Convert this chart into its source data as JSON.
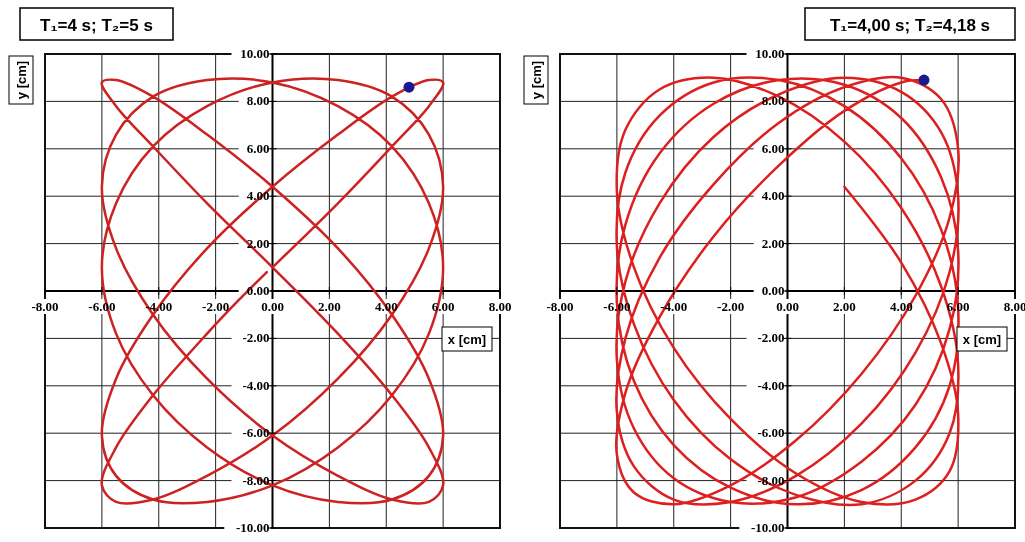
{
  "chart_data": [
    {
      "type": "line",
      "title": "T₁=4 s; T₂=5 s",
      "xlabel": "x [cm]",
      "ylabel": "y [cm]",
      "xlim": [
        -8,
        8
      ],
      "ylim": [
        -10,
        10
      ],
      "xticks": [
        {
          "value": -8,
          "label": "-8.00"
        },
        {
          "value": -6,
          "label": "-6.00"
        },
        {
          "value": -4,
          "label": "-4.00"
        },
        {
          "value": -2,
          "label": "-2.00"
        },
        {
          "value": 0,
          "label": "0.00"
        },
        {
          "value": 2,
          "label": "2.00"
        },
        {
          "value": 4,
          "label": "4.00"
        },
        {
          "value": 6,
          "label": "6.00"
        },
        {
          "value": 8,
          "label": "8.00"
        }
      ],
      "yticks": [
        {
          "value": -10,
          "label": "-10.00"
        },
        {
          "value": -8,
          "label": "-8.00"
        },
        {
          "value": -6,
          "label": "-6.00"
        },
        {
          "value": -4,
          "label": "-4.00"
        },
        {
          "value": -2,
          "label": "-2.00"
        },
        {
          "value": 0,
          "label": "0.00"
        },
        {
          "value": 2,
          "label": "2.00"
        },
        {
          "value": 4,
          "label": "4.00"
        },
        {
          "value": 6,
          "label": "6.00"
        },
        {
          "value": 8,
          "label": "8.00"
        },
        {
          "value": 10,
          "label": "10.00"
        }
      ],
      "grid": true,
      "series": [
        {
          "type": "line",
          "color": "#cc2222",
          "x": [
            0,
            2.3,
            4.2,
            5.5,
            6,
            5.5,
            4.2,
            2.3,
            0,
            -2.3,
            -4.2,
            -5.5,
            -6,
            -5.5,
            -4.2,
            -2.3,
            0,
            2.3,
            4.2,
            5.5,
            6,
            5.5,
            4.2,
            2.3,
            0,
            -2.3,
            -4.2,
            -5.5,
            -6,
            -5.5,
            -4.2,
            -2.3,
            0,
            2.3,
            4.2,
            5.5,
            6,
            5.5,
            4.2,
            2.3,
            0,
            -2.3,
            -4.2,
            -5.5,
            -6,
            -5.5,
            -4.2,
            -2.3,
            0,
            2.3,
            4.2,
            5.5,
            6,
            5.5,
            4.2,
            2.3,
            0,
            -2.3,
            -4.2,
            -5.5,
            -6,
            -5.5,
            -4.2,
            -2.3,
            0,
            2.3,
            4.2,
            5.5,
            6,
            5.5,
            4.2,
            2.3,
            0,
            -2.3,
            -4.2,
            -5.5,
            -6,
            -5.5,
            -4.2,
            -2.3,
            -1.2,
            -0.2
          ],
          "values": [
            1.0,
            3.7,
            6.1,
            7.8,
            8.8,
            8.9,
            8.2,
            6.6,
            4.4,
            1.8,
            -1.0,
            -3.7,
            -6.1,
            -7.8,
            -8.8,
            -8.9,
            -8.2,
            -6.6,
            -4.4,
            -1.8,
            1.0,
            3.7,
            6.1,
            7.8,
            8.8,
            8.9,
            8.2,
            6.6,
            4.4,
            1.8,
            -1.0,
            -3.7,
            -6.1,
            -7.8,
            -8.8,
            -8.9,
            -8.2,
            -6.6,
            -4.4,
            -1.8,
            1.0,
            3.7,
            6.1,
            7.8,
            8.8,
            8.9,
            8.2,
            6.6,
            4.4,
            1.8,
            -1.0,
            -3.7,
            -6.1,
            -7.8,
            -8.8,
            -8.9,
            -8.2,
            -6.6,
            -4.4,
            -1.8,
            1.0,
            3.7,
            6.1,
            7.8,
            8.8,
            8.9,
            8.2,
            6.6,
            4.4,
            1.8,
            -1.0,
            -3.7,
            -6.1,
            -7.8,
            -8.8,
            -8.9,
            -8.2,
            -6.6,
            -4.4,
            -1.8,
            -0.4,
            0.8
          ]
        },
        {
          "type": "scatter",
          "color": "#1a1a90",
          "x": [
            4.8
          ],
          "values": [
            8.6
          ]
        }
      ]
    },
    {
      "type": "line",
      "title": "T₁=4,00 s; T₂=4,18 s",
      "xlabel": "x [cm]",
      "ylabel": "y [cm]",
      "xlim": [
        -8,
        8
      ],
      "ylim": [
        -10,
        10
      ],
      "xticks": [
        {
          "value": -8,
          "label": "-8.00"
        },
        {
          "value": -6,
          "label": "-6.00"
        },
        {
          "value": -4,
          "label": "-4.00"
        },
        {
          "value": -2,
          "label": "-2.00"
        },
        {
          "value": 0,
          "label": "0.00"
        },
        {
          "value": 2,
          "label": "2.00"
        },
        {
          "value": 4,
          "label": "4.00"
        },
        {
          "value": 6,
          "label": "6.00"
        },
        {
          "value": 8,
          "label": "8.00"
        }
      ],
      "yticks": [
        {
          "value": -10,
          "label": "-10.00"
        },
        {
          "value": -8,
          "label": "-8.00"
        },
        {
          "value": -6,
          "label": "-6.00"
        },
        {
          "value": -4,
          "label": "-4.00"
        },
        {
          "value": -2,
          "label": "-2.00"
        },
        {
          "value": 0,
          "label": "0.00"
        },
        {
          "value": 2,
          "label": "2.00"
        },
        {
          "value": 4,
          "label": "4.00"
        },
        {
          "value": 6,
          "label": "6.00"
        },
        {
          "value": 8,
          "label": "8.00"
        },
        {
          "value": 10,
          "label": "10.00"
        }
      ],
      "grid": true,
      "series": [
        {
          "type": "line",
          "color": "#dd1f1f",
          "x": [
            2.0,
            4.0,
            5.4,
            6.0,
            5.7,
            4.5,
            2.6,
            0.3,
            -2.0,
            -4.0,
            -5.4,
            -6.0,
            -5.7,
            -4.5,
            -2.6,
            -0.3,
            2.0,
            4.0,
            5.4,
            6.0,
            5.7,
            4.5,
            2.6,
            0.3,
            -2.0,
            -4.0,
            -5.4,
            -6.0,
            -5.7,
            -4.5,
            -2.6,
            -0.3,
            2.0,
            4.0,
            5.4,
            6.0,
            5.7,
            4.5,
            2.6,
            0.3,
            -2.0,
            -4.0,
            -5.4,
            -6.0,
            -5.7,
            -4.5,
            -2.6,
            -0.3,
            2.0,
            4.0,
            5.4,
            6.0,
            5.7,
            4.5,
            2.6,
            0.3,
            -2.0,
            -4.0,
            -5.4,
            -6.0,
            -5.7,
            -4.5,
            -2.6,
            -0.3,
            2.0,
            4.0,
            5.4,
            6.0,
            5.7,
            4.5,
            2.6,
            0.3,
            -2.0,
            -4.0,
            -5.4,
            -6.0,
            -5.7,
            -4.5,
            -2.6,
            -0.3,
            2.0,
            4.0,
            5.4,
            6.0,
            5.7,
            4.5,
            2.6,
            0.3,
            -2.0,
            -4.0,
            -5.4,
            -6.0,
            -5.7,
            -4.5,
            -2.6,
            -0.3,
            2.0,
            4.0,
            4.8
          ],
          "values": [
            4.4,
            1.2,
            -2.2,
            -5.2,
            -7.6,
            -8.8,
            -8.9,
            -7.7,
            -5.4,
            -2.4,
            1.0,
            4.2,
            6.8,
            8.5,
            9.0,
            8.2,
            6.3,
            3.5,
            0.2,
            -3.1,
            -6.0,
            -8.0,
            -9.0,
            -8.6,
            -7.1,
            -4.6,
            -1.4,
            1.9,
            5.0,
            7.4,
            8.8,
            8.9,
            7.8,
            5.6,
            2.6,
            -0.7,
            -4.0,
            -6.6,
            -8.4,
            -9.0,
            -8.3,
            -6.5,
            -3.8,
            -0.5,
            2.8,
            5.8,
            7.9,
            8.9,
            8.7,
            7.3,
            4.8,
            1.7,
            -1.6,
            -4.8,
            -7.2,
            -8.7,
            -8.9,
            -7.9,
            -5.8,
            -2.9,
            0.4,
            3.7,
            6.5,
            8.3,
            9.0,
            8.4,
            6.7,
            4.0,
            0.8,
            -2.6,
            -5.6,
            -7.8,
            -8.9,
            -8.8,
            -7.4,
            -5.1,
            -2.0,
            1.4,
            4.5,
            7.1,
            8.6,
            9.0,
            8.1,
            6.0,
            3.1,
            -0.2,
            -3.5,
            -6.3,
            -8.2,
            -9.0,
            -8.5,
            -6.9,
            -4.3,
            -1.1,
            2.3,
            5.3,
            7.6,
            8.8,
            8.9
          ]
        },
        {
          "type": "scatter",
          "color": "#1a1a90",
          "x": [
            4.8
          ],
          "values": [
            8.9
          ]
        }
      ]
    }
  ]
}
